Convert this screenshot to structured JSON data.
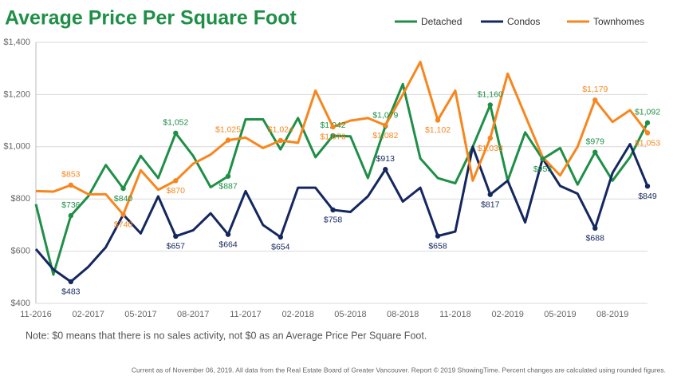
{
  "chart_data": {
    "type": "line",
    "title": "Average Price Per Square Foot",
    "note": "Note: $0 means that there is no sales activity, not $0 as an Average Price Per Square Foot.",
    "footer": "Current as of November 06, 2019. All data from the Real Estate Board of Greater Vancouver. Report © 2019 ShowingTime. Percent changes are calculated using rounded figures.",
    "categories": [
      "11-2016",
      null,
      null,
      "02-2017",
      null,
      null,
      "05-2017",
      null,
      null,
      "08-2017",
      null,
      null,
      "11-2017",
      null,
      null,
      "02-2018",
      null,
      null,
      "05-2018",
      null,
      null,
      "08-2018",
      null,
      null,
      "11-2018",
      null,
      null,
      "02-2019",
      null,
      null,
      "05-2019",
      null,
      null,
      "08-2019",
      null,
      null
    ],
    "ylim": [
      400,
      1400
    ],
    "yticks": [
      {
        "value": 400,
        "label": "$400"
      },
      {
        "value": 600,
        "label": "$600"
      },
      {
        "value": 800,
        "label": "$800"
      },
      {
        "value": 1000,
        "label": "$1,000"
      },
      {
        "value": 1200,
        "label": "$1,200"
      },
      {
        "value": 1400,
        "label": "$1,400"
      }
    ],
    "grid": true,
    "legend": "top-right",
    "series": [
      {
        "name": "Detached",
        "color": "#1f8f47",
        "values": [
          780,
          510,
          736,
          810,
          930,
          840,
          965,
          880,
          1052,
          965,
          845,
          887,
          1105,
          1105,
          990,
          1110,
          960,
          1042,
          1040,
          880,
          1079,
          1240,
          955,
          880,
          860,
          1000,
          1160,
          870,
          1055,
          953,
          995,
          855,
          979,
          870,
          960,
          1092
        ],
        "value_labels": [
          null,
          null,
          "$736",
          null,
          null,
          "$840",
          null,
          null,
          "$1,052",
          null,
          null,
          "$887",
          null,
          null,
          null,
          null,
          null,
          "$1,042",
          null,
          null,
          "$1,079",
          null,
          null,
          null,
          null,
          null,
          "$1,160",
          null,
          null,
          "$953",
          null,
          null,
          "$979",
          null,
          null,
          "$1,092"
        ]
      },
      {
        "name": "Condos",
        "color": "#14275f",
        "values": [
          608,
          530,
          483,
          540,
          615,
          740,
          668,
          810,
          657,
          680,
          745,
          664,
          830,
          700,
          654,
          843,
          843,
          758,
          750,
          810,
          913,
          790,
          843,
          658,
          675,
          1000,
          817,
          870,
          710,
          955,
          850,
          820,
          688,
          900,
          1010,
          849
        ],
        "value_labels": [
          null,
          null,
          "$483",
          null,
          null,
          null,
          null,
          null,
          "$657",
          null,
          null,
          "$664",
          null,
          null,
          "$654",
          null,
          null,
          "$758",
          null,
          null,
          "$913",
          null,
          null,
          "$658",
          null,
          null,
          "$817",
          null,
          null,
          null,
          null,
          null,
          "$688",
          null,
          null,
          "$849"
        ]
      },
      {
        "name": "Townhomes",
        "color": "#f7861e",
        "values": [
          830,
          828,
          853,
          818,
          818,
          740,
          910,
          835,
          870,
          935,
          970,
          1025,
          1035,
          995,
          1024,
          1015,
          1215,
          1076,
          1100,
          1110,
          1082,
          1200,
          1325,
          1102,
          1215,
          870,
          1033,
          1280,
          1120,
          960,
          890,
          1000,
          1179,
          1095,
          1140,
          1053
        ],
        "value_labels": [
          null,
          null,
          "$853",
          null,
          null,
          "$740",
          null,
          null,
          "$870",
          null,
          null,
          "$1,025",
          null,
          null,
          "$1,024",
          null,
          null,
          "$1,076",
          null,
          null,
          "$1,082",
          null,
          null,
          "$1,102",
          null,
          null,
          "$1,033",
          null,
          null,
          null,
          null,
          null,
          "$1,179",
          null,
          null,
          "$1,053"
        ]
      }
    ]
  }
}
